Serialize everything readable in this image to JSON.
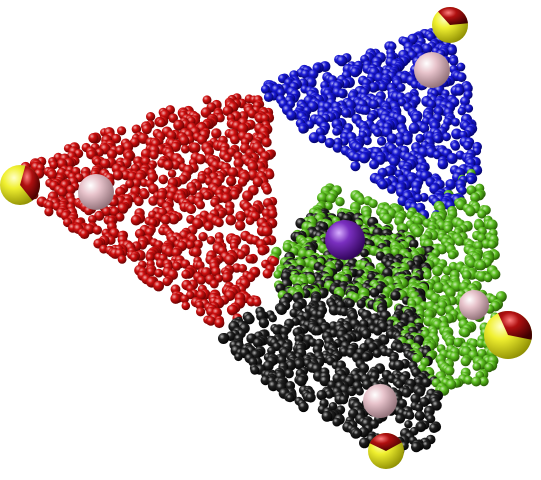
{
  "scene": {
    "kind": "3D molecular-style point cloud rendered as shaded spheres",
    "background": "#ffffff",
    "clusters": [
      {
        "name": "red-cluster",
        "color": "#d01010",
        "dark": "#5a0000",
        "approx_points": 850
      },
      {
        "name": "blue-cluster",
        "color": "#1a1ad8",
        "dark": "#00005a",
        "approx_points": 650
      },
      {
        "name": "green-cluster",
        "color": "#5cc020",
        "dark": "#1f4d00",
        "approx_points": 750
      },
      {
        "name": "black-cluster",
        "color": "#202020",
        "dark": "#000000",
        "approx_points": 850
      }
    ],
    "marker_spheres": {
      "vertex_markers": {
        "count": 4,
        "colors": [
          "#f0f030",
          "#b01010"
        ]
      },
      "centroid_markers": {
        "count": 4,
        "color": "#e8c4cc"
      },
      "center_marker": {
        "count": 1,
        "color": "#7a2fc0"
      }
    }
  }
}
